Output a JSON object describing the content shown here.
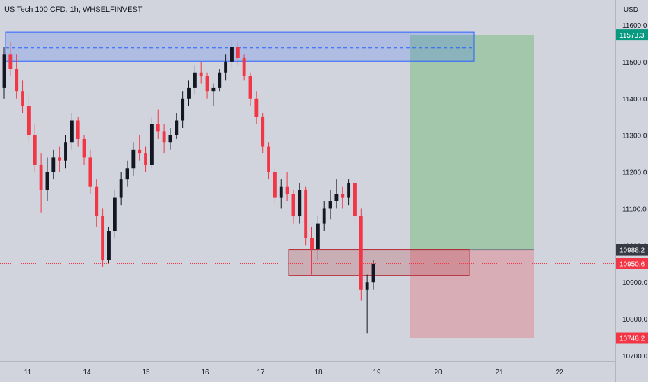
{
  "header": {
    "symbol_title": "US Tech 100 CFD, 1h, WHSELFINVEST",
    "currency": "USD"
  },
  "chart_data": {
    "type": "candlestick",
    "x_tick_labels": [
      "11",
      "14",
      "15",
      "16",
      "17",
      "18",
      "19",
      "20",
      "21",
      "22"
    ],
    "y_tick_labels": [
      "11600.0",
      "11500.0",
      "11400.0",
      "11300.0",
      "11200.0",
      "11100.0",
      "11000.0",
      "10900.0",
      "10800.0",
      "10700.0"
    ],
    "ylim": [
      10690,
      11640
    ],
    "grid": false,
    "price_badges": [
      {
        "value": "11573.3",
        "color": "#089981"
      },
      {
        "value": "10988.2",
        "color": "#363a45"
      },
      {
        "value": "10950.6",
        "color": "#f23645"
      },
      {
        "value": "10748.2",
        "color": "#f23645"
      }
    ],
    "current_price": 10950.6,
    "resistance_zone": {
      "top": 11573.3,
      "bottom": 11505,
      "mid": 11538,
      "color": "#2962ff"
    },
    "support_zone": {
      "top": 10988.2,
      "bottom": 10918,
      "color": "#b22833"
    },
    "position": {
      "entry": 10988.2,
      "target": 11573.3,
      "stop": 10748.2,
      "profit_color": "#4caf50",
      "loss_color": "#f23645"
    },
    "candle_up_color": "#131722",
    "candle_down_color": "#f23645",
    "candles": [
      [
        11430,
        11540,
        11400,
        11520
      ],
      [
        11520,
        11555,
        11460,
        11480
      ],
      [
        11480,
        11520,
        11400,
        11420
      ],
      [
        11420,
        11450,
        11360,
        11380
      ],
      [
        11380,
        11410,
        11280,
        11300
      ],
      [
        11300,
        11330,
        11200,
        11220
      ],
      [
        11220,
        11250,
        11090,
        11150
      ],
      [
        11150,
        11240,
        11120,
        11200
      ],
      [
        11200,
        11260,
        11180,
        11240
      ],
      [
        11240,
        11270,
        11200,
        11230
      ],
      [
        11230,
        11300,
        11210,
        11280
      ],
      [
        11280,
        11360,
        11260,
        11340
      ],
      [
        11340,
        11350,
        11270,
        11290
      ],
      [
        11290,
        11300,
        11220,
        11240
      ],
      [
        11240,
        11260,
        11140,
        11160
      ],
      [
        11160,
        11180,
        11050,
        11080
      ],
      [
        11080,
        11100,
        10940,
        10960
      ],
      [
        10960,
        11050,
        10950,
        11040
      ],
      [
        11040,
        11150,
        11020,
        11130
      ],
      [
        11130,
        11200,
        11110,
        11180
      ],
      [
        11180,
        11230,
        11160,
        11210
      ],
      [
        11210,
        11280,
        11190,
        11260
      ],
      [
        11260,
        11300,
        11230,
        11250
      ],
      [
        11250,
        11270,
        11200,
        11220
      ],
      [
        11220,
        11350,
        11210,
        11330
      ],
      [
        11330,
        11370,
        11290,
        11310
      ],
      [
        11310,
        11330,
        11250,
        11280
      ],
      [
        11280,
        11320,
        11260,
        11300
      ],
      [
        11300,
        11360,
        11290,
        11340
      ],
      [
        11340,
        11420,
        11320,
        11400
      ],
      [
        11400,
        11450,
        11380,
        11430
      ],
      [
        11430,
        11490,
        11410,
        11470
      ],
      [
        11470,
        11500,
        11440,
        11460
      ],
      [
        11460,
        11470,
        11400,
        11420
      ],
      [
        11420,
        11440,
        11380,
        11430
      ],
      [
        11430,
        11480,
        11420,
        11470
      ],
      [
        11470,
        11520,
        11450,
        11500
      ],
      [
        11500,
        11560,
        11480,
        11540
      ],
      [
        11540,
        11555,
        11490,
        11510
      ],
      [
        11510,
        11520,
        11450,
        11460
      ],
      [
        11460,
        11470,
        11380,
        11400
      ],
      [
        11400,
        11420,
        11330,
        11350
      ],
      [
        11350,
        11360,
        11250,
        11270
      ],
      [
        11270,
        11280,
        11180,
        11200
      ],
      [
        11200,
        11210,
        11110,
        11130
      ],
      [
        11130,
        11180,
        11100,
        11160
      ],
      [
        11160,
        11200,
        11120,
        11140
      ],
      [
        11140,
        11150,
        11060,
        11080
      ],
      [
        11080,
        11170,
        11060,
        11150
      ],
      [
        11150,
        11160,
        11000,
        11020
      ],
      [
        11020,
        11050,
        10920,
        10990
      ],
      [
        10990,
        11080,
        10960,
        11060
      ],
      [
        11060,
        11120,
        11040,
        11100
      ],
      [
        11100,
        11150,
        11070,
        11120
      ],
      [
        11120,
        11180,
        11100,
        11140
      ],
      [
        11140,
        11160,
        11100,
        11130
      ],
      [
        11130,
        11180,
        11110,
        11170
      ],
      [
        11170,
        11180,
        11060,
        11080
      ],
      [
        11080,
        11100,
        10850,
        10880
      ],
      [
        10880,
        10920,
        10760,
        10900
      ],
      [
        10900,
        10960,
        10880,
        10950
      ]
    ],
    "candle_x_range": [
      6,
      537
    ]
  }
}
